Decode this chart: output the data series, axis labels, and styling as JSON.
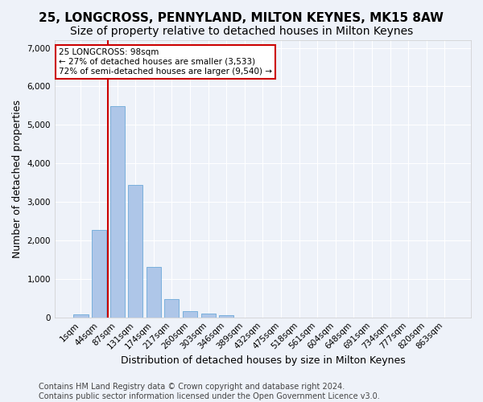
{
  "title": "25, LONGCROSS, PENNYLAND, MILTON KEYNES, MK15 8AW",
  "subtitle": "Size of property relative to detached houses in Milton Keynes",
  "xlabel": "Distribution of detached houses by size in Milton Keynes",
  "ylabel": "Number of detached properties",
  "bar_values": [
    75,
    2280,
    5480,
    3450,
    1320,
    470,
    160,
    90,
    55,
    0,
    0,
    0,
    0,
    0,
    0,
    0,
    0,
    0,
    0,
    0,
    0
  ],
  "bar_labels": [
    "1sqm",
    "44sqm",
    "87sqm",
    "131sqm",
    "174sqm",
    "217sqm",
    "260sqm",
    "303sqm",
    "346sqm",
    "389sqm",
    "432sqm",
    "475sqm",
    "518sqm",
    "561sqm",
    "604sqm",
    "648sqm",
    "691sqm",
    "734sqm",
    "777sqm",
    "820sqm",
    "863sqm"
  ],
  "bar_color": "#aec6e8",
  "bar_edge_color": "#5a9fd4",
  "vline_color": "#cc0000",
  "vline_x": 1.5,
  "annotation_text": "25 LONGCROSS: 98sqm\n← 27% of detached houses are smaller (3,533)\n72% of semi-detached houses are larger (9,540) →",
  "annotation_box_color": "#ffffff",
  "annotation_box_edge": "#cc0000",
  "ylim": [
    0,
    7200
  ],
  "yticks": [
    0,
    1000,
    2000,
    3000,
    4000,
    5000,
    6000,
    7000
  ],
  "bg_color": "#eef2f9",
  "grid_color": "#ffffff",
  "footer": "Contains HM Land Registry data © Crown copyright and database right 2024.\nContains public sector information licensed under the Open Government Licence v3.0.",
  "title_fontsize": 11,
  "subtitle_fontsize": 10,
  "xlabel_fontsize": 9,
  "ylabel_fontsize": 9,
  "tick_fontsize": 7.5,
  "footer_fontsize": 7
}
